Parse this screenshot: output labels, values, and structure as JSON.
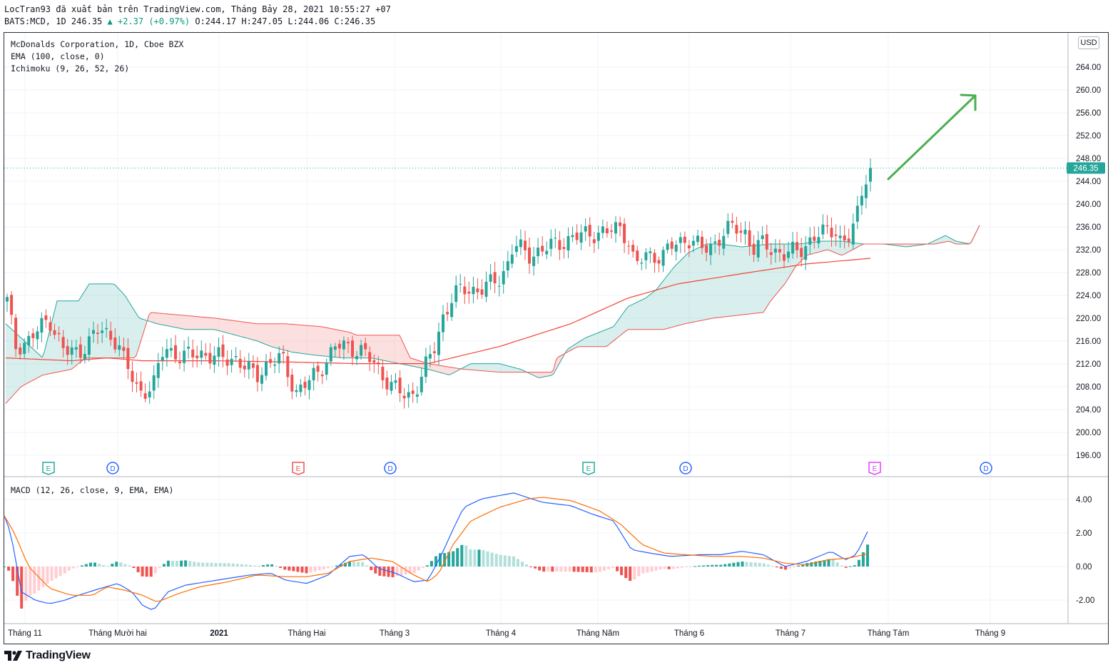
{
  "header": {
    "line1": "LocTran93 đã xuất bản trên TradingView.com, Tháng Bảy 28, 2021 10:55:27 +07",
    "symbol": "BATS:MCD, 1D 246.35",
    "change": "▲ +2.37 (+0.97%)",
    "ohlc": "O:244.17 H:247.05 L:244.06 C:246.35"
  },
  "legend": {
    "title": "McDonalds Corporation, 1D, Cboe BZX",
    "ema": "EMA (100, close, 0)",
    "ichimoku": "Ichimoku (9, 26, 52, 26)",
    "macd": "MACD (12, 26, close, 9, EMA, EMA)"
  },
  "currency_label": "USD",
  "colors": {
    "up": "#26a69a",
    "down": "#ef5350",
    "ema": "#f44336",
    "macd": "#2962ff",
    "signal": "#ff6d00",
    "arrow": "#4caf50"
  },
  "price_axis": {
    "ticks": [
      "264.00",
      "260.00",
      "256.00",
      "252.00",
      "248.00",
      "244.00",
      "240.00",
      "236.00",
      "232.00",
      "228.00",
      "224.00",
      "220.00",
      "216.00",
      "212.00",
      "208.00",
      "204.00",
      "200.00",
      "196.00"
    ],
    "last_price": "246.35"
  },
  "macd_axis": {
    "ticks": [
      "4.00",
      "2.00",
      "0.00",
      "-2.00"
    ]
  },
  "time_axis": [
    "Tháng 11",
    "Tháng Mười hai",
    "2021",
    "Tháng Hai",
    "Tháng 3",
    "Tháng 4",
    "Tháng Năm",
    "Tháng 6",
    "Tháng 7",
    "Tháng Tám",
    "Tháng 9"
  ],
  "events": [
    {
      "type": "E",
      "color": "#26a69a"
    },
    {
      "type": "D",
      "color": "#2962ff"
    },
    {
      "type": "E",
      "color": "#ef5350"
    },
    {
      "type": "D",
      "color": "#2962ff"
    },
    {
      "type": "E",
      "color": "#26a69a"
    },
    {
      "type": "D",
      "color": "#2962ff"
    },
    {
      "type": "E",
      "color": "#e040fb"
    },
    {
      "type": "D",
      "color": "#2962ff"
    }
  ],
  "footer": {
    "brand": "TradingView"
  }
}
